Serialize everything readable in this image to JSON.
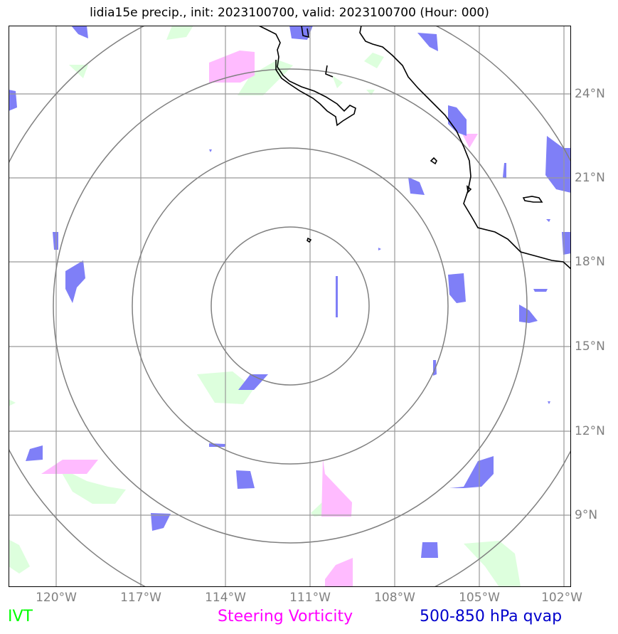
{
  "title": "lidia15e precip., init: 2023100700, valid: 2023100700 (Hour: 000)",
  "lon_labels": [
    "120°W",
    "117°W",
    "114°W",
    "111°W",
    "108°W",
    "105°W",
    "102°W"
  ],
  "lat_labels": [
    "24°N",
    "21°N",
    "18°N",
    "15°N",
    "12°N",
    "9°N"
  ],
  "legend": {
    "ivt": "IVT",
    "steering": "Steering Vorticity",
    "qvap": "500-850 hPa qvap"
  },
  "colors": {
    "ivt": "#00ff00",
    "steering": "#ff00ff",
    "qvap": "#0000cc",
    "ivt_fill": "#ddffdd",
    "steering_fill": "#ffbbff",
    "qvap_fill": "#7f7ff7",
    "grid": "#999999",
    "rings": "#808080",
    "coast": "#000000"
  }
}
